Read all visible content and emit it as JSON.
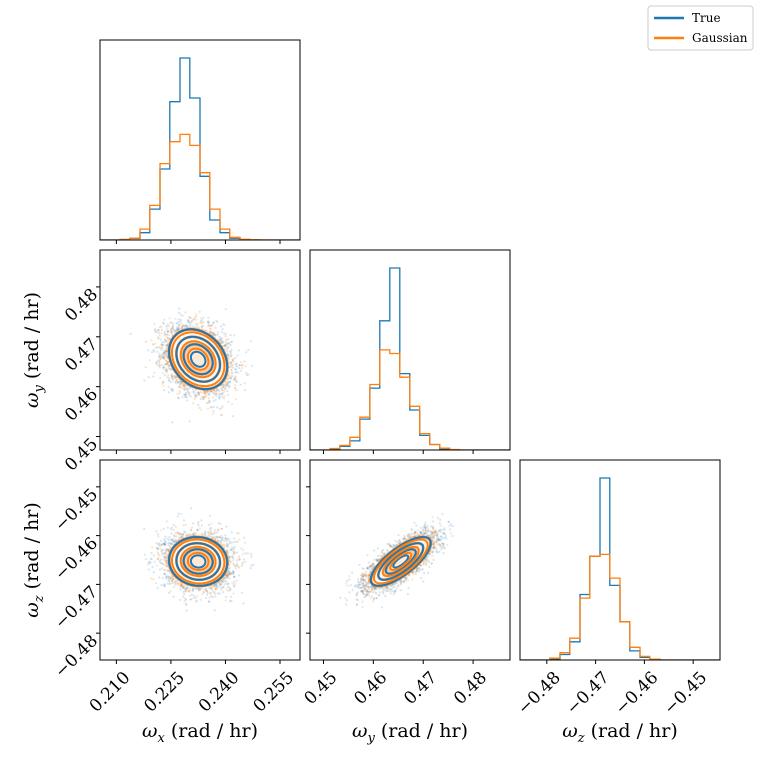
{
  "chart_data": {
    "type": "corner",
    "colors": {
      "True": "#1f77b4",
      "Gaussian": "#ff7f0e"
    },
    "legend": {
      "placement": "top-right",
      "entries": [
        "True",
        "Gaussian"
      ]
    },
    "variables": [
      {
        "key": "wx",
        "symbol": "ω",
        "sub": "x",
        "unit": " (rad / hr)",
        "range": [
          0.2055,
          0.2605
        ],
        "ticks": [
          0.21,
          0.225,
          0.24,
          0.255
        ],
        "tick_labels": [
          "0.210",
          "0.225",
          "0.240",
          "0.255"
        ],
        "mean": 0.2325,
        "sd": 0.004
      },
      {
        "key": "wy",
        "symbol": "ω",
        "sub": "y",
        "unit": " (rad / hr)",
        "range": [
          0.4473,
          0.4874
        ],
        "ticks": [
          0.45,
          0.46,
          0.47,
          0.48
        ],
        "tick_labels": [
          "0.45",
          "0.46",
          "0.47",
          "0.48"
        ],
        "mean": 0.4655,
        "sd": 0.003
      },
      {
        "key": "wz",
        "symbol": "ω",
        "sub": "z",
        "unit": " (rad / hr)",
        "range": [
          -0.4855,
          -0.4445
        ],
        "ticks": [
          -0.48,
          -0.47,
          -0.46,
          -0.45
        ],
        "tick_labels": [
          "−0.48",
          "−0.47",
          "−0.46",
          "−0.45"
        ],
        "mean": -0.4653,
        "sd": 0.0025
      }
    ],
    "correlations": {
      "wx_wy": -0.25,
      "wx_wz": -0.05,
      "wy_wz": 0.75
    },
    "histograms": [
      {
        "var": "wx",
        "bin_edges": [
          0.2055,
          0.2082,
          0.211,
          0.2137,
          0.2165,
          0.2192,
          0.222,
          0.2247,
          0.2275,
          0.2302,
          0.233,
          0.2357,
          0.2385,
          0.2412,
          0.244,
          0.2467,
          0.2495,
          0.2522,
          0.255,
          0.2577,
          0.2605
        ],
        "series": [
          {
            "name": "True",
            "counts": [
              0,
              0,
              0.003,
              0.008,
              0.04,
              0.17,
              0.39,
              0.76,
              1.0,
              0.78,
              0.35,
              0.11,
              0.04,
              0.01,
              0.002,
              0,
              0,
              0,
              0,
              0
            ]
          },
          {
            "name": "Gaussian",
            "counts": [
              0,
              0,
              0.003,
              0.01,
              0.06,
              0.19,
              0.42,
              0.54,
              0.58,
              0.52,
              0.37,
              0.17,
              0.06,
              0.015,
              0.004,
              0.001,
              0,
              0,
              0,
              0
            ]
          }
        ]
      },
      {
        "var": "wy",
        "bin_edges": [
          0.4473,
          0.4493,
          0.4513,
          0.4533,
          0.4553,
          0.4573,
          0.4593,
          0.4613,
          0.4633,
          0.4653,
          0.4673,
          0.4693,
          0.4713,
          0.4733,
          0.4753,
          0.4773,
          0.4793,
          0.4813,
          0.4833,
          0.4853,
          0.4874
        ],
        "series": [
          {
            "name": "True",
            "counts": [
              0,
              0,
              0.005,
              0.02,
              0.05,
              0.17,
              0.34,
              0.71,
              1.0,
              0.42,
              0.22,
              0.08,
              0.03,
              0.005,
              0,
              0,
              0,
              0,
              0,
              0
            ]
          },
          {
            "name": "Gaussian",
            "counts": [
              0,
              0,
              0.008,
              0.025,
              0.07,
              0.18,
              0.36,
              0.55,
              0.53,
              0.4,
              0.24,
              0.09,
              0.03,
              0.01,
              0.003,
              0,
              0,
              0,
              0,
              0
            ]
          }
        ]
      },
      {
        "var": "wz",
        "bin_edges": [
          -0.4855,
          -0.4835,
          -0.4814,
          -0.4794,
          -0.4773,
          -0.4753,
          -0.4732,
          -0.4712,
          -0.4691,
          -0.4671,
          -0.465,
          -0.463,
          -0.4609,
          -0.4589,
          -0.4568,
          -0.4548,
          -0.4527,
          -0.4507,
          -0.4486,
          -0.4466,
          -0.4445
        ],
        "series": [
          {
            "name": "True",
            "counts": [
              0,
              0,
              0,
              0.005,
              0.03,
              0.1,
              0.36,
              0.57,
              1.0,
              0.41,
              0.21,
              0.05,
              0.015,
              0.003,
              0,
              0,
              0,
              0,
              0,
              0
            ]
          },
          {
            "name": "Gaussian",
            "counts": [
              0,
              0,
              0,
              0.01,
              0.04,
              0.12,
              0.34,
              0.57,
              0.58,
              0.45,
              0.21,
              0.07,
              0.02,
              0.005,
              0,
              0,
              0,
              0,
              0,
              0
            ]
          }
        ]
      }
    ]
  }
}
